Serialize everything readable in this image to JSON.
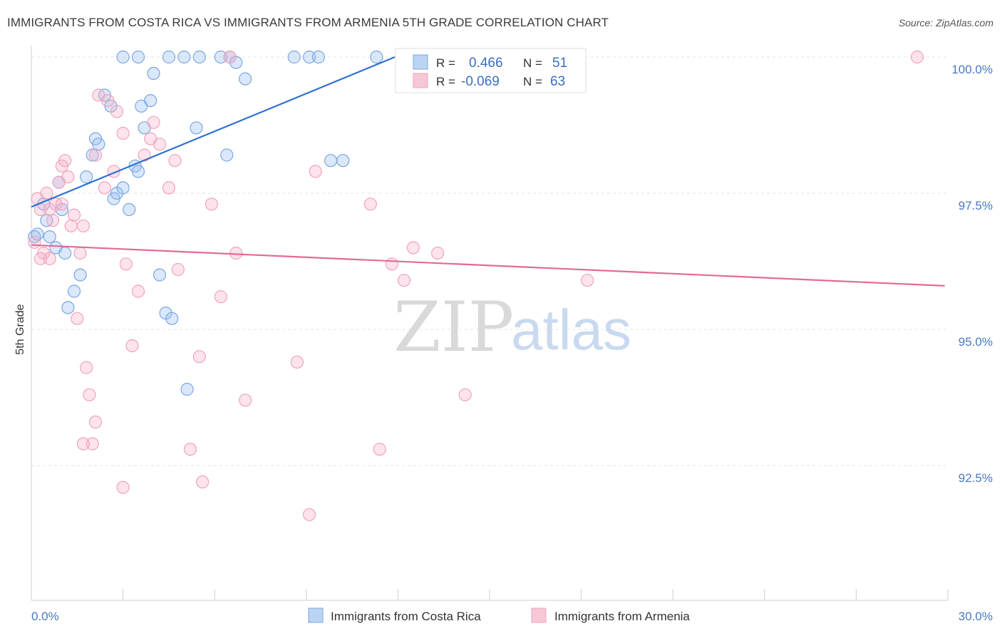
{
  "title": "IMMIGRANTS FROM COSTA RICA VS IMMIGRANTS FROM ARMENIA 5TH GRADE CORRELATION CHART",
  "source": "Source: ZipAtlas.com",
  "watermark": {
    "zip": "ZIP",
    "atlas": "atlas"
  },
  "colors": {
    "blue": "#7aa7e0",
    "blue_line": "#2f72d0",
    "pink": "#f0a3bd",
    "pink_line": "#e26a95"
  },
  "legend": {
    "r_label": "R =",
    "n_label": "N =",
    "blue": {
      "r": "0.466",
      "n": "51"
    },
    "pink": {
      "r": "-0.069",
      "n": "63"
    }
  },
  "chart_data": {
    "type": "scatter",
    "title": "IMMIGRANTS FROM COSTA RICA VS IMMIGRANTS FROM ARMENIA 5TH GRADE CORRELATION CHART",
    "xlabel": "",
    "ylabel": "5th Grade",
    "xlim": [
      0,
      30
    ],
    "ylim": [
      90.2,
      100.2
    ],
    "x_tick_labels": [
      "0.0%",
      "30.0%"
    ],
    "y_ticks": [
      92.5,
      95.0,
      97.5,
      100.0
    ],
    "y_tick_labels": [
      "92.5%",
      "95.0%",
      "97.5%",
      "100.0%"
    ],
    "grid": true,
    "legend_position": "top-center",
    "series": [
      {
        "name": "Immigrants from Costa Rica",
        "color": "#7aa7e0",
        "trend": {
          "x": [
            0.0,
            11.9
          ],
          "y": [
            97.25,
            100.0
          ]
        },
        "points": [
          [
            0.1,
            96.7
          ],
          [
            0.2,
            96.75
          ],
          [
            0.4,
            97.3
          ],
          [
            0.5,
            97.0
          ],
          [
            0.6,
            96.7
          ],
          [
            0.8,
            96.5
          ],
          [
            0.9,
            97.7
          ],
          [
            1.0,
            97.2
          ],
          [
            1.1,
            96.4
          ],
          [
            1.2,
            95.4
          ],
          [
            1.4,
            95.7
          ],
          [
            1.6,
            96.0
          ],
          [
            1.8,
            97.8
          ],
          [
            2.0,
            98.2
          ],
          [
            2.1,
            98.5
          ],
          [
            2.2,
            98.4
          ],
          [
            2.4,
            99.3
          ],
          [
            2.6,
            99.1
          ],
          [
            2.7,
            97.4
          ],
          [
            2.8,
            97.5
          ],
          [
            3.0,
            97.6
          ],
          [
            3.2,
            97.2
          ],
          [
            3.4,
            98.0
          ],
          [
            3.5,
            97.9
          ],
          [
            3.6,
            99.1
          ],
          [
            3.7,
            98.7
          ],
          [
            3.9,
            99.2
          ],
          [
            4.0,
            99.7
          ],
          [
            4.2,
            96.0
          ],
          [
            4.4,
            95.3
          ],
          [
            4.6,
            95.2
          ],
          [
            5.1,
            93.9
          ],
          [
            3.0,
            100.0
          ],
          [
            3.5,
            100.0
          ],
          [
            4.5,
            100.0
          ],
          [
            5.0,
            100.0
          ],
          [
            5.5,
            100.0
          ],
          [
            6.2,
            100.0
          ],
          [
            6.5,
            100.0
          ],
          [
            6.7,
            99.9
          ],
          [
            7.0,
            99.6
          ],
          [
            8.6,
            100.0
          ],
          [
            9.1,
            100.0
          ],
          [
            9.4,
            100.0
          ],
          [
            10.2,
            98.1
          ],
          [
            11.3,
            100.0
          ],
          [
            12.5,
            99.9
          ],
          [
            9.8,
            98.1
          ],
          [
            12.8,
            100.0
          ],
          [
            5.4,
            98.7
          ],
          [
            6.4,
            98.2
          ]
        ]
      },
      {
        "name": "Immigrants from Armenia",
        "color": "#f0a3bd",
        "trend": {
          "x": [
            0.0,
            29.9
          ],
          "y": [
            96.55,
            95.8
          ]
        },
        "points": [
          [
            0.1,
            96.6
          ],
          [
            0.2,
            97.4
          ],
          [
            0.3,
            97.2
          ],
          [
            0.4,
            96.4
          ],
          [
            0.5,
            97.5
          ],
          [
            0.6,
            96.3
          ],
          [
            0.7,
            97.0
          ],
          [
            0.8,
            97.3
          ],
          [
            0.9,
            97.7
          ],
          [
            1.0,
            98.0
          ],
          [
            1.1,
            98.1
          ],
          [
            1.2,
            97.8
          ],
          [
            1.3,
            96.9
          ],
          [
            1.4,
            97.1
          ],
          [
            1.5,
            95.2
          ],
          [
            1.6,
            96.4
          ],
          [
            1.7,
            96.9
          ],
          [
            1.8,
            94.3
          ],
          [
            1.9,
            93.8
          ],
          [
            2.0,
            92.9
          ],
          [
            2.1,
            98.2
          ],
          [
            2.2,
            99.3
          ],
          [
            2.4,
            97.6
          ],
          [
            2.5,
            99.2
          ],
          [
            2.7,
            97.9
          ],
          [
            2.8,
            99.0
          ],
          [
            3.0,
            98.6
          ],
          [
            3.1,
            96.2
          ],
          [
            3.3,
            94.7
          ],
          [
            3.5,
            95.7
          ],
          [
            3.7,
            98.2
          ],
          [
            3.9,
            98.5
          ],
          [
            4.0,
            98.8
          ],
          [
            4.2,
            98.4
          ],
          [
            4.5,
            97.6
          ],
          [
            4.8,
            96.1
          ],
          [
            5.2,
            92.8
          ],
          [
            5.5,
            94.5
          ],
          [
            5.6,
            92.2
          ],
          [
            5.9,
            97.3
          ],
          [
            6.2,
            95.6
          ],
          [
            6.5,
            100.0
          ],
          [
            6.7,
            96.4
          ],
          [
            2.1,
            93.3
          ],
          [
            1.7,
            92.9
          ],
          [
            3.0,
            92.1
          ],
          [
            7.0,
            93.7
          ],
          [
            8.7,
            94.4
          ],
          [
            9.1,
            91.6
          ],
          [
            9.3,
            97.9
          ],
          [
            11.1,
            97.3
          ],
          [
            11.4,
            92.8
          ],
          [
            11.8,
            96.2
          ],
          [
            12.2,
            95.9
          ],
          [
            12.5,
            96.5
          ],
          [
            13.3,
            96.4
          ],
          [
            14.2,
            93.8
          ],
          [
            18.2,
            95.9
          ],
          [
            29.0,
            100.0
          ],
          [
            0.3,
            96.3
          ],
          [
            1.0,
            97.3
          ],
          [
            0.6,
            97.2
          ],
          [
            4.7,
            98.1
          ]
        ]
      }
    ]
  },
  "bottom_legend": [
    "Immigrants from Costa Rica",
    "Immigrants from Armenia"
  ]
}
